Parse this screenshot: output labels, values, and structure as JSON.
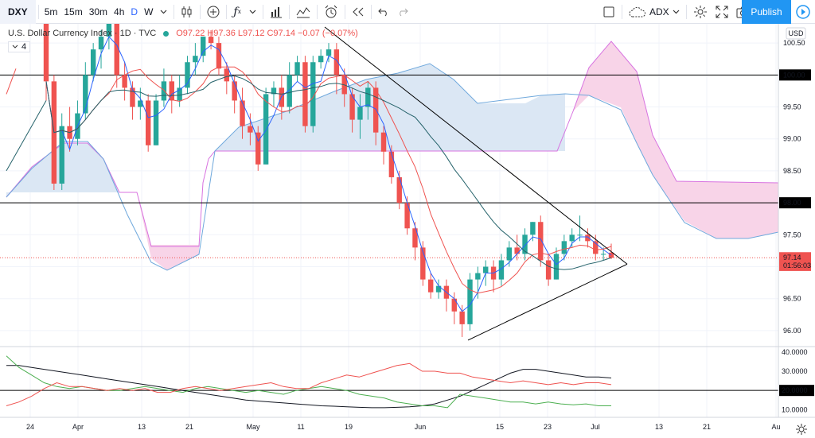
{
  "toolbar": {
    "symbol": "DXY",
    "intervals": [
      "5m",
      "15m",
      "30m",
      "4h",
      "D",
      "W"
    ],
    "active_interval": "D",
    "indicators_label": "",
    "compare_label": "ADX",
    "publish_label": "Publish"
  },
  "legend": {
    "title": "U.S. Dollar Currency Index · 1D · TVC",
    "open": "O97.22",
    "high": "H97.36",
    "low": "L97.12",
    "close": "C97.14",
    "change": "−0.07 (−0.07%)",
    "studies_count": "4"
  },
  "price_axis": {
    "currency": "USD",
    "ticks": [
      "100.50",
      "100.00",
      "99.50",
      "99.00",
      "98.50",
      "98.00",
      "97.50",
      "97.00",
      "96.50",
      "96.00"
    ],
    "highlight_labels": [
      {
        "text": "100.00",
        "value": 100.0,
        "color": "#000000"
      },
      {
        "text": "98.00",
        "value": 98.0,
        "color": "#000000"
      },
      {
        "text": "97.14",
        "value": 97.14,
        "color": "#ef5350"
      },
      {
        "text": "01:56:03",
        "value": 97.02,
        "color": "#ef5350"
      }
    ]
  },
  "adx_axis": {
    "ticks": [
      "40.0000",
      "30.0000",
      "20.0000",
      "10.0000"
    ],
    "highlight": "20.0000"
  },
  "time_axis": [
    "24",
    "Apr",
    "13",
    "21",
    "May",
    "11",
    "19",
    "Jun",
    "15",
    "23",
    "Jul",
    "13",
    "21",
    "Au"
  ],
  "colors": {
    "up": "#26a69a",
    "down": "#ef5350",
    "accent": "#2196f3",
    "cloud_bull": "#dbe7f4",
    "cloud_bear": "#f8d4e8"
  },
  "chart_data": {
    "type": "candlestick",
    "title": "U.S. Dollar Currency Index · 1D · TVC",
    "ylim": [
      95.75,
      100.8
    ],
    "horizontal_lines": [
      100.0,
      98.0,
      97.14
    ],
    "candles": [
      [
        100.9,
        99.9,
        101,
        99.6
      ],
      [
        99.9,
        98.3,
        100,
        98.2
      ],
      [
        98.3,
        99.2,
        99.4,
        98.2
      ],
      [
        99.2,
        99.0,
        99.5,
        98.8
      ],
      [
        99.0,
        99.4,
        99.6,
        98.9
      ],
      [
        99.4,
        100.0,
        100.2,
        99.3
      ],
      [
        100.0,
        100.4,
        100.5,
        99.9
      ],
      [
        100.4,
        100.6,
        100.7,
        100.1
      ],
      [
        100.6,
        100.8,
        100.9,
        100.4
      ],
      [
        100.8,
        100.0,
        100.9,
        99.8
      ],
      [
        100.0,
        99.8,
        100.2,
        99.6
      ],
      [
        99.8,
        99.5,
        99.9,
        99.3
      ],
      [
        99.5,
        99.6,
        99.8,
        99.3
      ],
      [
        99.6,
        98.9,
        99.7,
        98.8
      ],
      [
        98.9,
        99.6,
        99.7,
        98.9
      ],
      [
        99.6,
        99.9,
        100.1,
        99.5
      ],
      [
        99.9,
        99.6,
        100.0,
        99.4
      ],
      [
        99.6,
        99.8,
        100.0,
        99.5
      ],
      [
        99.8,
        100.2,
        100.3,
        99.7
      ],
      [
        100.2,
        100.3,
        100.5,
        100.0
      ],
      [
        100.3,
        100.6,
        100.6,
        100.2
      ],
      [
        100.6,
        100.5,
        100.7,
        100.4
      ],
      [
        100.5,
        100.1,
        100.6,
        100.0
      ],
      [
        100.1,
        99.9,
        100.2,
        99.7
      ],
      [
        99.9,
        99.6,
        100.0,
        99.4
      ],
      [
        99.6,
        99.2,
        99.8,
        99.0
      ],
      [
        99.2,
        99.1,
        99.4,
        98.9
      ],
      [
        99.1,
        98.6,
        99.2,
        98.5
      ],
      [
        98.6,
        99.7,
        99.8,
        98.6
      ],
      [
        99.7,
        99.8,
        99.9,
        99.5
      ],
      [
        99.8,
        99.5,
        100.0,
        99.3
      ],
      [
        99.5,
        100.0,
        100.2,
        99.4
      ],
      [
        100.0,
        100.2,
        100.3,
        99.9
      ],
      [
        100.2,
        99.2,
        100.3,
        99.1
      ],
      [
        99.2,
        100.2,
        100.3,
        99.1
      ],
      [
        100.2,
        100.3,
        100.4,
        100.1
      ],
      [
        100.3,
        100.4,
        100.5,
        100.2
      ],
      [
        100.4,
        100.0,
        100.5,
        99.7
      ],
      [
        100.0,
        99.7,
        100.1,
        99.5
      ],
      [
        99.7,
        99.3,
        99.8,
        99.1
      ],
      [
        99.3,
        99.5,
        99.7,
        99.0
      ],
      [
        99.5,
        99.8,
        99.9,
        99.3
      ],
      [
        99.8,
        99.1,
        99.9,
        98.9
      ],
      [
        99.1,
        98.8,
        99.2,
        98.6
      ],
      [
        98.8,
        98.4,
        98.9,
        98.3
      ],
      [
        98.4,
        98.0,
        98.5,
        97.9
      ],
      [
        98.0,
        97.6,
        98.1,
        97.5
      ],
      [
        97.6,
        97.3,
        97.7,
        97.1
      ],
      [
        97.3,
        96.8,
        97.4,
        96.7
      ],
      [
        96.8,
        96.6,
        96.9,
        96.5
      ],
      [
        96.6,
        96.7,
        96.8,
        96.5
      ],
      [
        96.7,
        96.5,
        96.8,
        96.3
      ],
      [
        96.5,
        96.3,
        96.6,
        96.1
      ],
      [
        96.3,
        96.1,
        96.4,
        95.9
      ],
      [
        96.1,
        96.8,
        96.9,
        96.0
      ],
      [
        96.8,
        96.9,
        97.0,
        96.5
      ],
      [
        96.9,
        97.0,
        97.1,
        96.7
      ],
      [
        97.0,
        96.8,
        97.1,
        96.6
      ],
      [
        96.8,
        97.1,
        97.2,
        96.7
      ],
      [
        97.1,
        97.3,
        97.4,
        97.0
      ],
      [
        97.3,
        97.2,
        97.5,
        97.1
      ],
      [
        97.2,
        97.5,
        97.6,
        97.1
      ],
      [
        97.5,
        97.7,
        97.7,
        97.4
      ],
      [
        97.7,
        97.1,
        97.8,
        97.0
      ],
      [
        97.1,
        96.8,
        97.2,
        96.7
      ],
      [
        96.8,
        97.2,
        97.3,
        96.8
      ],
      [
        97.2,
        97.4,
        97.5,
        97.1
      ],
      [
        97.4,
        97.5,
        97.6,
        97.3
      ],
      [
        97.5,
        97.5,
        97.8,
        97.4
      ],
      [
        97.5,
        97.4,
        97.6,
        97.3
      ],
      [
        97.4,
        97.2,
        97.5,
        97.1
      ],
      [
        97.2,
        97.2,
        97.3,
        97.1
      ],
      [
        97.22,
        97.14,
        97.36,
        97.12
      ]
    ],
    "adx_series": [
      {
        "name": "ADX",
        "values": [
          33,
          33,
          32,
          31,
          30,
          29,
          28,
          27,
          26,
          25,
          24,
          23,
          22,
          21,
          20,
          19,
          18,
          17,
          16,
          15,
          14.5,
          14,
          13.5,
          13,
          12.5,
          12,
          11.8,
          11.5,
          11.2,
          11,
          11,
          11.2,
          11.5,
          12,
          13,
          15,
          17,
          20,
          23,
          26,
          29,
          31,
          31,
          30,
          29,
          28,
          27,
          27,
          26.5
        ]
      },
      {
        "name": "DI+",
        "values": [
          38,
          32,
          28,
          24,
          22,
          21,
          22,
          21,
          20,
          20,
          21,
          22,
          21,
          20,
          19,
          21,
          22,
          21,
          20,
          19,
          20,
          19,
          18,
          20,
          21,
          22,
          21,
          20,
          18,
          17,
          16,
          14,
          13,
          12,
          12,
          11,
          18,
          17,
          16,
          15,
          14,
          14,
          13,
          14,
          13,
          12.5,
          13,
          12,
          12
        ]
      },
      {
        "name": "DI-",
        "values": [
          12,
          14,
          17,
          21,
          24,
          22,
          22,
          21,
          20,
          21,
          20,
          21,
          19,
          19,
          21,
          22,
          21,
          20,
          21,
          22,
          23,
          24,
          22,
          21,
          21,
          24,
          26,
          28,
          27,
          29,
          31,
          33,
          34,
          30,
          30,
          29,
          29,
          27,
          26,
          25,
          24,
          25,
          24,
          23,
          24,
          23,
          24,
          24,
          23
        ]
      }
    ]
  }
}
